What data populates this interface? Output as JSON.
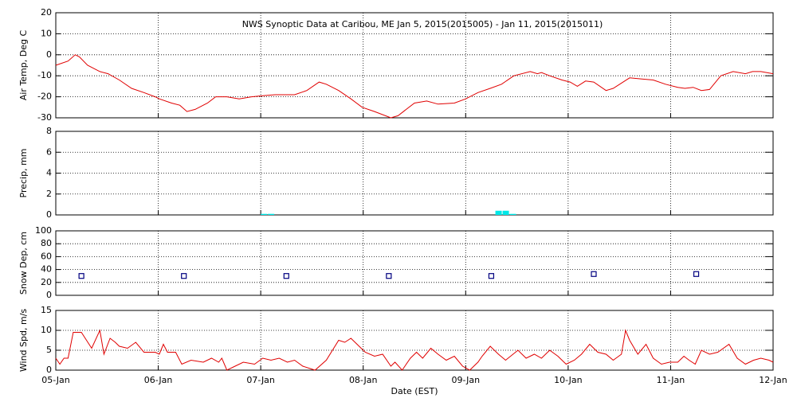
{
  "chart_data": [
    {
      "type": "line",
      "title": "NWS Synoptic Data at Caribou, ME   Jan  5, 2015(2015005) - Jan 11, 2015(2015011)",
      "ylabel": "Air Temp, Deg C",
      "color": "#e00000",
      "ylim": [
        -30,
        20
      ],
      "yticks": [
        -30,
        -20,
        -10,
        0,
        10,
        20
      ],
      "grid": true,
      "x": [
        0,
        0.12,
        0.19,
        0.23,
        0.31,
        0.43,
        0.51,
        0.62,
        0.74,
        0.86,
        0.97,
        1.01,
        1.13,
        1.21,
        1.28,
        1.36,
        1.48,
        1.56,
        1.67,
        1.79,
        1.91,
        2.02,
        2.14,
        2.33,
        2.45,
        2.57,
        2.64,
        2.76,
        2.88,
        2.99,
        3.11,
        3.27,
        3.34,
        3.42,
        3.5,
        3.62,
        3.73,
        3.89,
        4.0,
        4.12,
        4.24,
        4.35,
        4.47,
        4.63,
        4.7,
        4.74,
        4.82,
        4.94,
        5.02,
        5.09,
        5.17,
        5.25,
        5.37,
        5.44,
        5.6,
        5.72,
        5.83,
        5.95,
        6.07,
        6.14,
        6.22,
        6.3,
        6.38,
        6.49,
        6.61,
        6.73,
        6.8,
        6.88,
        7.0
      ],
      "values": [
        -5,
        -3,
        0,
        -1,
        -5,
        -8,
        -9,
        -12,
        -16,
        -18,
        -20,
        -21,
        -23,
        -24,
        -27,
        -26,
        -23,
        -20,
        -20,
        -21,
        -20,
        -19.5,
        -19,
        -19,
        -17,
        -13,
        -14,
        -17,
        -21,
        -25,
        -27,
        -30,
        -29,
        -26,
        -23,
        -22,
        -23.5,
        -23,
        -21,
        -18,
        -16,
        -14,
        -10,
        -8,
        -9,
        -8.5,
        -10,
        -12,
        -13,
        -15,
        -12.5,
        -13,
        -17,
        -16,
        -11,
        -11.5,
        -12,
        -14,
        -15.5,
        -16,
        -15.5,
        -17,
        -16.5,
        -10,
        -8,
        -9,
        -8,
        -8,
        -9
      ]
    },
    {
      "type": "bar",
      "ylabel": "Precip, mm",
      "color": "#00e8e8",
      "ylim": [
        0,
        8
      ],
      "yticks": [
        0,
        2,
        4,
        6,
        8
      ],
      "grid": true,
      "x": [
        2.0,
        2.07,
        4.29,
        4.36,
        4.43
      ],
      "values": [
        0.1,
        0.1,
        0.4,
        0.4,
        0.1
      ]
    },
    {
      "type": "scatter",
      "ylabel": "Snow Dep, cm",
      "color": "#000080",
      "ylim": [
        0,
        100
      ],
      "yticks": [
        0,
        20,
        40,
        60,
        80,
        100
      ],
      "grid": true,
      "x": [
        0.25,
        1.25,
        2.25,
        3.25,
        4.25,
        5.25,
        6.25
      ],
      "values": [
        30,
        30,
        30,
        30,
        30,
        33,
        33
      ]
    },
    {
      "type": "line",
      "ylabel": "Wind Spd, m/s",
      "xlabel": "Date (EST)",
      "color": "#e00000",
      "ylim": [
        0,
        15
      ],
      "yticks": [
        0,
        5,
        10,
        15
      ],
      "grid": true,
      "xlim": [
        0,
        7
      ],
      "xticks": [
        {
          "value": 0,
          "label": "05-Jan"
        },
        {
          "value": 1,
          "label": "06-Jan"
        },
        {
          "value": 2,
          "label": "07-Jan"
        },
        {
          "value": 3,
          "label": "08-Jan"
        },
        {
          "value": 4,
          "label": "09-Jan"
        },
        {
          "value": 5,
          "label": "10-Jan"
        },
        {
          "value": 6,
          "label": "11-Jan"
        },
        {
          "value": 7,
          "label": "12-Jan"
        }
      ],
      "x": [
        0,
        0.04,
        0.08,
        0.12,
        0.17,
        0.25,
        0.35,
        0.43,
        0.47,
        0.53,
        0.58,
        0.62,
        0.7,
        0.78,
        0.86,
        0.97,
        1.01,
        1.05,
        1.09,
        1.17,
        1.23,
        1.32,
        1.44,
        1.52,
        1.59,
        1.62,
        1.67,
        1.75,
        1.83,
        1.94,
        2.02,
        2.1,
        2.18,
        2.26,
        2.33,
        2.41,
        2.53,
        2.64,
        2.76,
        2.82,
        2.88,
        2.96,
        3.02,
        3.11,
        3.19,
        3.27,
        3.31,
        3.38,
        3.46,
        3.52,
        3.58,
        3.66,
        3.73,
        3.81,
        3.89,
        3.97,
        4.04,
        4.12,
        4.16,
        4.24,
        4.32,
        4.39,
        4.51,
        4.59,
        4.67,
        4.74,
        4.82,
        4.9,
        4.98,
        5.06,
        5.13,
        5.21,
        5.29,
        5.37,
        5.44,
        5.52,
        5.56,
        5.6,
        5.68,
        5.76,
        5.83,
        5.91,
        5.99,
        6.07,
        6.13,
        6.18,
        6.24,
        6.3,
        6.38,
        6.46,
        6.57,
        6.65,
        6.73,
        6.81,
        6.88,
        6.96,
        7.0
      ],
      "values": [
        3,
        1.5,
        3,
        3,
        9.5,
        9.5,
        5.5,
        10,
        4,
        8,
        7,
        6,
        5.5,
        7,
        4.5,
        4.5,
        4,
        6.5,
        4.5,
        4.5,
        1.5,
        2.5,
        2,
        3,
        2,
        3,
        0,
        1,
        2,
        1.5,
        3,
        2.5,
        3,
        2,
        2.5,
        1,
        0,
        2.5,
        7.5,
        7,
        8,
        6,
        4.5,
        3.5,
        4,
        1,
        2,
        0,
        3,
        4.5,
        3,
        5.5,
        4,
        2.5,
        3.5,
        1,
        0,
        2,
        3.5,
        6,
        4,
        2.5,
        5,
        3,
        4,
        3,
        5,
        3.5,
        1.5,
        2.5,
        4,
        6.5,
        4.5,
        4,
        2.5,
        4,
        10,
        7.5,
        4,
        6.5,
        3,
        1.5,
        2,
        2,
        3.5,
        2.5,
        1.5,
        5,
        4,
        4.5,
        6.5,
        3,
        1.5,
        2.5,
        3,
        2.5,
        2
      ]
    }
  ]
}
